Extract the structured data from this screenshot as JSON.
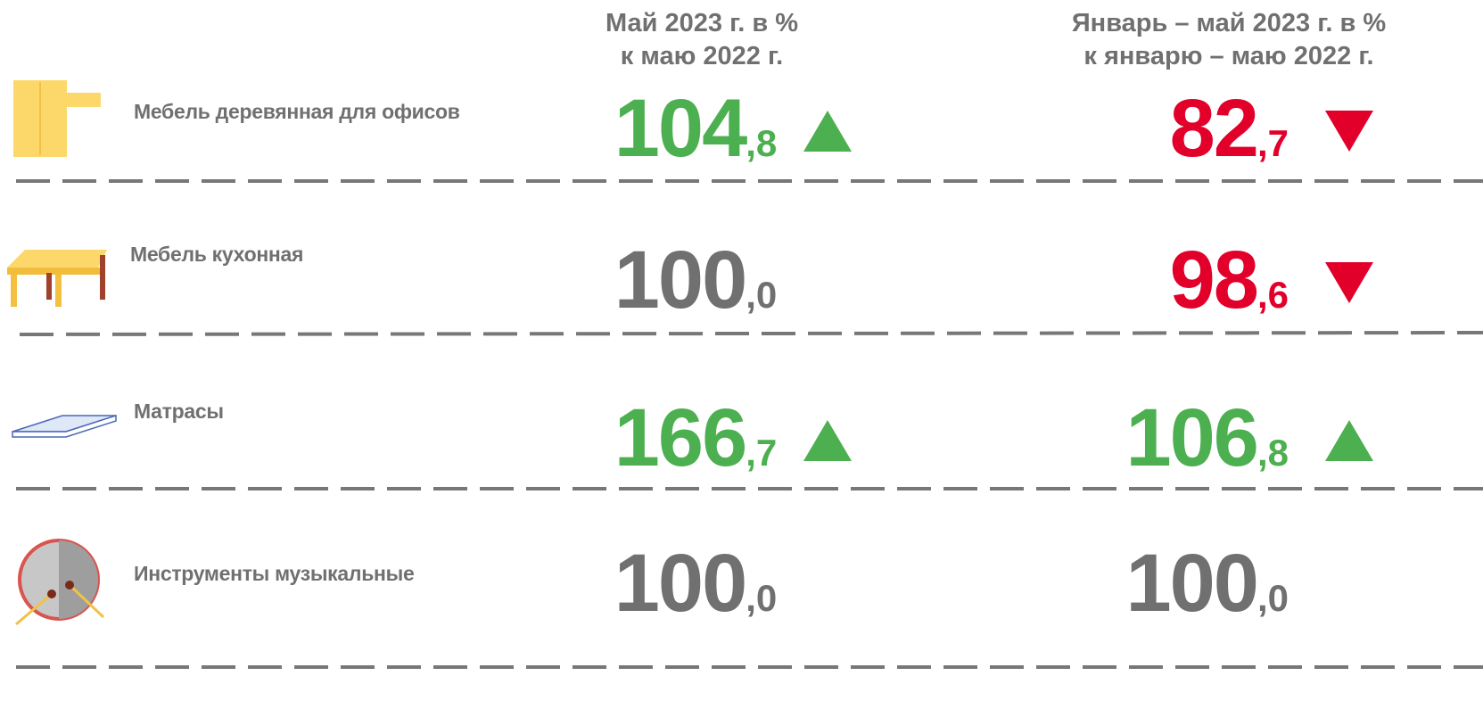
{
  "headers": {
    "may": [
      "Май 2023 г. в %",
      "к маю 2022 г."
    ],
    "ytd": [
      "Январь – май 2023 г. в %",
      "к январю – маю 2022 г."
    ]
  },
  "rows": [
    {
      "label": "Мебель деревянная для офисов",
      "may": {
        "value": "104,8",
        "trend": "up"
      },
      "ytd": {
        "value": "82,7",
        "trend": "down"
      }
    },
    {
      "label": "Мебель кухонная",
      "may": {
        "value": "100,0",
        "trend": "flat"
      },
      "ytd": {
        "value": "98,6",
        "trend": "down"
      }
    },
    {
      "label": "Матрасы",
      "may": {
        "value": "166,7",
        "trend": "up"
      },
      "ytd": {
        "value": "106,8",
        "trend": "up"
      }
    },
    {
      "label": "Инструменты музыкальные",
      "may": {
        "value": "100,0",
        "trend": "flat"
      },
      "ytd": {
        "value": "100,0",
        "trend": "flat"
      }
    }
  ],
  "colors": {
    "up": "#4caf50",
    "down": "#e2002b",
    "flat": "#707070"
  }
}
